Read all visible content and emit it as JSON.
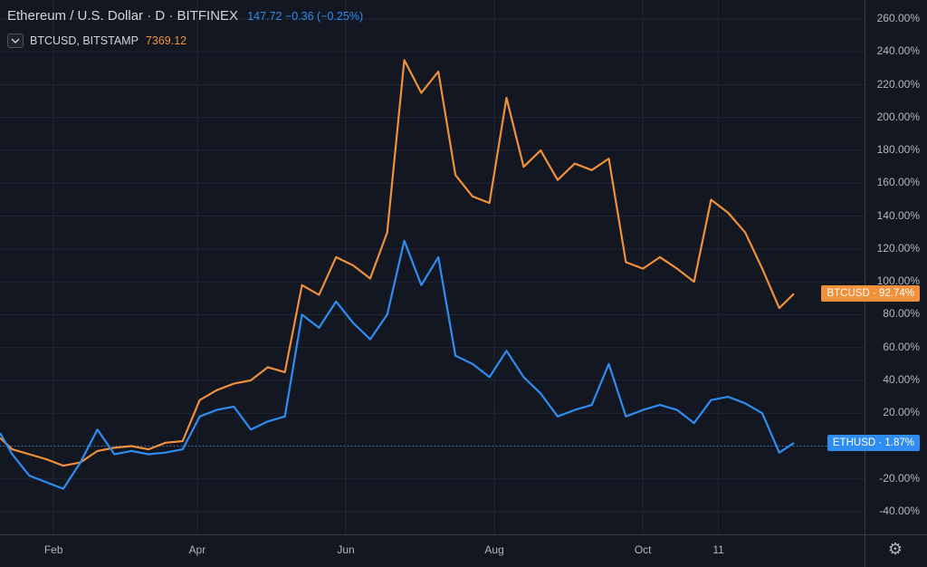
{
  "header": {
    "title": "Ethereum / U.S. Dollar · D · BITFINEX",
    "quote": "147.72 −0.36 (−0.25%)"
  },
  "compare": {
    "symbol": "BTCUSD, BITSTAMP",
    "price": "7369.12"
  },
  "icons": {
    "toggle": "chevron-down-icon",
    "settings": "gear-icon"
  },
  "colors": {
    "btc": "#f0903a",
    "eth": "#2f8cf0",
    "background": "#131722",
    "grid": "#232733"
  },
  "chart_data": {
    "type": "line",
    "title": "Ethereum / U.S. Dollar · D · BITFINEX",
    "xlabel": "",
    "ylabel": "",
    "yunit": "%",
    "ylim": [
      -50,
      265
    ],
    "y_ticks": [
      "260.00%",
      "240.00%",
      "220.00%",
      "200.00%",
      "180.00%",
      "160.00%",
      "140.00%",
      "120.00%",
      "100.00%",
      "80.00%",
      "60.00%",
      "40.00%",
      "20.00%",
      "0.00%",
      "-20.00%",
      "-40.00%"
    ],
    "y_tick_values": [
      260,
      240,
      220,
      200,
      180,
      160,
      140,
      120,
      100,
      80,
      60,
      40,
      20,
      0,
      -20,
      -40
    ],
    "x_ticks": [
      "Feb",
      "Apr",
      "Jun",
      "Aug",
      "Oct",
      "11"
    ],
    "x_tick_dates": [
      "2019-02-01",
      "2019-04-01",
      "2019-06-01",
      "2019-08-01",
      "2019-10-01",
      "2019-11-01"
    ],
    "x_range": [
      "2019-01-10",
      "2019-12-31"
    ],
    "grid": true,
    "legend": "top-left",
    "series": [
      {
        "name": "BTCUSD",
        "color": "#f0903a",
        "last_value": 92.74,
        "tag_label": "BTCUSD · 92.74%",
        "points": [
          [
            "2019-01-10",
            5
          ],
          [
            "2019-01-15",
            -2
          ],
          [
            "2019-01-22",
            -5
          ],
          [
            "2019-01-29",
            -8
          ],
          [
            "2019-02-05",
            -12
          ],
          [
            "2019-02-12",
            -10
          ],
          [
            "2019-02-19",
            -3
          ],
          [
            "2019-02-26",
            -1
          ],
          [
            "2019-03-05",
            0
          ],
          [
            "2019-03-12",
            -2
          ],
          [
            "2019-03-19",
            2
          ],
          [
            "2019-03-26",
            3
          ],
          [
            "2019-04-02",
            28
          ],
          [
            "2019-04-09",
            34
          ],
          [
            "2019-04-16",
            38
          ],
          [
            "2019-04-23",
            40
          ],
          [
            "2019-04-30",
            48
          ],
          [
            "2019-05-07",
            45
          ],
          [
            "2019-05-14",
            98
          ],
          [
            "2019-05-21",
            92
          ],
          [
            "2019-05-28",
            115
          ],
          [
            "2019-06-04",
            110
          ],
          [
            "2019-06-11",
            102
          ],
          [
            "2019-06-18",
            130
          ],
          [
            "2019-06-25",
            235
          ],
          [
            "2019-07-02",
            215
          ],
          [
            "2019-07-09",
            228
          ],
          [
            "2019-07-16",
            165
          ],
          [
            "2019-07-23",
            152
          ],
          [
            "2019-07-30",
            148
          ],
          [
            "2019-08-06",
            212
          ],
          [
            "2019-08-13",
            170
          ],
          [
            "2019-08-20",
            180
          ],
          [
            "2019-08-27",
            162
          ],
          [
            "2019-09-03",
            172
          ],
          [
            "2019-09-10",
            168
          ],
          [
            "2019-09-17",
            175
          ],
          [
            "2019-09-24",
            112
          ],
          [
            "2019-10-01",
            108
          ],
          [
            "2019-10-08",
            115
          ],
          [
            "2019-10-15",
            108
          ],
          [
            "2019-10-22",
            100
          ],
          [
            "2019-10-29",
            150
          ],
          [
            "2019-11-05",
            142
          ],
          [
            "2019-11-12",
            130
          ],
          [
            "2019-11-19",
            108
          ],
          [
            "2019-11-26",
            84
          ],
          [
            "2019-12-02",
            92.74
          ]
        ]
      },
      {
        "name": "ETHUSD",
        "color": "#2f8cf0",
        "last_value": 1.87,
        "tag_label": "ETHUSD · 1.87%",
        "points": [
          [
            "2019-01-10",
            8
          ],
          [
            "2019-01-15",
            -5
          ],
          [
            "2019-01-22",
            -18
          ],
          [
            "2019-01-29",
            -22
          ],
          [
            "2019-02-05",
            -26
          ],
          [
            "2019-02-12",
            -10
          ],
          [
            "2019-02-19",
            10
          ],
          [
            "2019-02-26",
            -5
          ],
          [
            "2019-03-05",
            -3
          ],
          [
            "2019-03-12",
            -5
          ],
          [
            "2019-03-19",
            -4
          ],
          [
            "2019-03-26",
            -2
          ],
          [
            "2019-04-02",
            18
          ],
          [
            "2019-04-09",
            22
          ],
          [
            "2019-04-16",
            24
          ],
          [
            "2019-04-23",
            10
          ],
          [
            "2019-04-30",
            15
          ],
          [
            "2019-05-07",
            18
          ],
          [
            "2019-05-14",
            80
          ],
          [
            "2019-05-21",
            72
          ],
          [
            "2019-05-28",
            88
          ],
          [
            "2019-06-04",
            75
          ],
          [
            "2019-06-11",
            65
          ],
          [
            "2019-06-18",
            80
          ],
          [
            "2019-06-25",
            125
          ],
          [
            "2019-07-02",
            98
          ],
          [
            "2019-07-09",
            115
          ],
          [
            "2019-07-16",
            55
          ],
          [
            "2019-07-23",
            50
          ],
          [
            "2019-07-30",
            42
          ],
          [
            "2019-08-06",
            58
          ],
          [
            "2019-08-13",
            42
          ],
          [
            "2019-08-20",
            32
          ],
          [
            "2019-08-27",
            18
          ],
          [
            "2019-09-03",
            22
          ],
          [
            "2019-09-10",
            25
          ],
          [
            "2019-09-17",
            50
          ],
          [
            "2019-09-24",
            18
          ],
          [
            "2019-10-01",
            22
          ],
          [
            "2019-10-08",
            25
          ],
          [
            "2019-10-15",
            22
          ],
          [
            "2019-10-22",
            14
          ],
          [
            "2019-10-29",
            28
          ],
          [
            "2019-11-05",
            30
          ],
          [
            "2019-11-12",
            26
          ],
          [
            "2019-11-19",
            20
          ],
          [
            "2019-11-26",
            -4
          ],
          [
            "2019-12-02",
            1.87
          ]
        ]
      }
    ]
  }
}
